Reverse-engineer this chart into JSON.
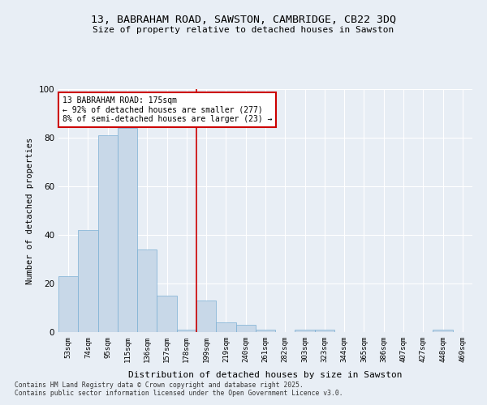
{
  "title1": "13, BABRAHAM ROAD, SAWSTON, CAMBRIDGE, CB22 3DQ",
  "title2": "Size of property relative to detached houses in Sawston",
  "xlabel": "Distribution of detached houses by size in Sawston",
  "ylabel": "Number of detached properties",
  "categories": [
    "53sqm",
    "74sqm",
    "95sqm",
    "115sqm",
    "136sqm",
    "157sqm",
    "178sqm",
    "199sqm",
    "219sqm",
    "240sqm",
    "261sqm",
    "282sqm",
    "303sqm",
    "323sqm",
    "344sqm",
    "365sqm",
    "386sqm",
    "407sqm",
    "427sqm",
    "448sqm",
    "469sqm"
  ],
  "values": [
    23,
    42,
    81,
    84,
    34,
    15,
    1,
    13,
    4,
    3,
    1,
    0,
    1,
    1,
    0,
    0,
    0,
    0,
    0,
    1,
    0
  ],
  "bar_color": "#c8d8e8",
  "bar_edge_color": "#7bafd4",
  "property_line_color": "#cc0000",
  "annotation_text": "13 BABRAHAM ROAD: 175sqm\n← 92% of detached houses are smaller (277)\n8% of semi-detached houses are larger (23) →",
  "annotation_box_color": "#ffffff",
  "annotation_box_edge": "#cc0000",
  "footnote1": "Contains HM Land Registry data © Crown copyright and database right 2025.",
  "footnote2": "Contains public sector information licensed under the Open Government Licence v3.0.",
  "bg_color": "#e8eef5",
  "plot_bg_color": "#e8eef5",
  "ylim": [
    0,
    100
  ],
  "yticks": [
    0,
    20,
    40,
    60,
    80,
    100
  ],
  "property_line_index": 6.5
}
